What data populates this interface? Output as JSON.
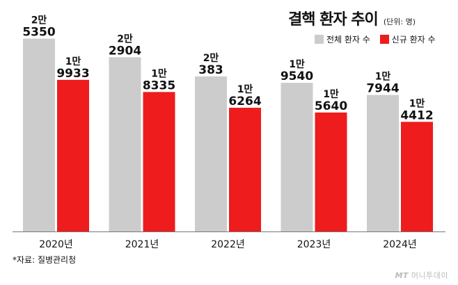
{
  "title": "결핵 환자 추이",
  "unit": "(단위: 명)",
  "source": "*자료: 질병관리청",
  "watermark": {
    "logo": "MT",
    "text": "머니투데이"
  },
  "colors": {
    "total": "#cccccc",
    "new": "#ee1c1c",
    "axis": "#777777"
  },
  "chart_data": {
    "type": "bar",
    "title": "결핵 환자 추이",
    "unit": "(단위: 명)",
    "categories": [
      "2020년",
      "2021년",
      "2022년",
      "2023년",
      "2024년"
    ],
    "series": [
      {
        "name": "전체 환자 수",
        "values": [
          25350,
          22904,
          20383,
          19540,
          17944
        ],
        "labels": [
          [
            "2만",
            "5350"
          ],
          [
            "2만",
            "2904"
          ],
          [
            "2만",
            "383"
          ],
          [
            "1만",
            "9540"
          ],
          [
            "1만",
            "7944"
          ]
        ]
      },
      {
        "name": "신규 환자 수",
        "values": [
          19933,
          18335,
          16264,
          15640,
          14412
        ],
        "labels": [
          [
            "1만",
            "9933"
          ],
          [
            "1만",
            "8335"
          ],
          [
            "1만",
            "6264"
          ],
          [
            "1만",
            "5640"
          ],
          [
            "1만",
            "4412"
          ]
        ]
      }
    ],
    "ylim": [
      0,
      26500
    ],
    "grid": false,
    "legend": "top-right"
  }
}
